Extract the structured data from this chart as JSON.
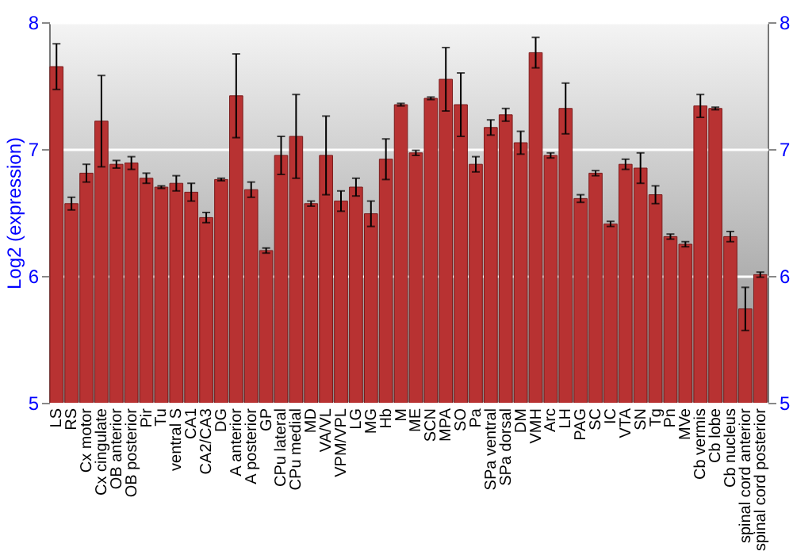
{
  "chart_data": {
    "type": "bar",
    "ylabel": "Log2 (expression)",
    "categories": [
      "LS",
      "RS",
      "Cx motor",
      "Cx cingulate",
      "OB anterior",
      "OB posterior",
      "Pir",
      "Tu",
      "ventral S",
      "CA1",
      "CA2/CA3",
      "DG",
      "A anterior",
      "A posterior",
      "GP",
      "CPu lateral",
      "CPu medial",
      "MD",
      "VA/VL",
      "VPM/VPL",
      "LG",
      "MG",
      "Hb",
      "M",
      "ME",
      "SCN",
      "MPA",
      "SO",
      "Pa",
      "SPa ventral",
      "SPa dorsal",
      "DM",
      "VMH",
      "Arc",
      "LH",
      "PAG",
      "SC",
      "IC",
      "VTA",
      "SN",
      "Tg",
      "Pn",
      "MVe",
      "Cb vermis",
      "Cb lobe",
      "Cb nucleus",
      "spinal cord anterior",
      "spinal cord posterior"
    ],
    "values": [
      7.65,
      6.57,
      6.81,
      7.22,
      6.88,
      6.89,
      6.77,
      6.7,
      6.73,
      6.66,
      6.46,
      6.76,
      7.42,
      6.68,
      6.2,
      6.95,
      7.1,
      6.57,
      6.95,
      6.59,
      6.7,
      6.49,
      6.92,
      7.35,
      6.97,
      7.4,
      7.55,
      7.35,
      6.88,
      7.17,
      7.27,
      7.05,
      7.76,
      6.95,
      7.32,
      6.61,
      6.81,
      6.41,
      6.88,
      6.85,
      6.64,
      6.31,
      6.25,
      7.34,
      7.32,
      6.31,
      5.74,
      6.01
    ],
    "errors": [
      0.18,
      0.05,
      0.07,
      0.36,
      0.03,
      0.05,
      0.04,
      0.01,
      0.06,
      0.07,
      0.04,
      0.01,
      0.33,
      0.06,
      0.02,
      0.15,
      0.33,
      0.02,
      0.31,
      0.08,
      0.07,
      0.1,
      0.16,
      0.01,
      0.02,
      0.01,
      0.25,
      0.25,
      0.06,
      0.06,
      0.05,
      0.09,
      0.12,
      0.02,
      0.2,
      0.03,
      0.02,
      0.02,
      0.04,
      0.12,
      0.07,
      0.02,
      0.02,
      0.09,
      0.01,
      0.04,
      0.17,
      0.02
    ],
    "color": "#b83232",
    "ylim": [
      5,
      8
    ],
    "yticks": [
      5,
      6,
      7,
      8
    ],
    "y2lim": [
      5,
      8
    ],
    "y2ticks": [
      5,
      6,
      7,
      8
    ],
    "grid": "y"
  }
}
